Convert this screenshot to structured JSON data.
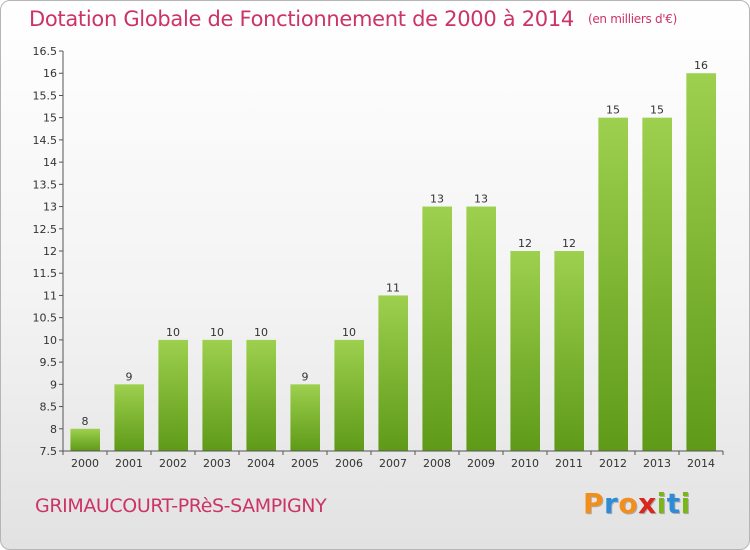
{
  "chart_data": {
    "type": "bar",
    "title": "Dotation Globale de Fonctionnement de 2000 à 2014",
    "unit": "(en milliers d'€)",
    "categories": [
      "2000",
      "2001",
      "2002",
      "2003",
      "2004",
      "2005",
      "2006",
      "2007",
      "2008",
      "2009",
      "2010",
      "2011",
      "2012",
      "2013",
      "2014"
    ],
    "values": [
      8,
      9,
      10,
      10,
      10,
      9,
      10,
      11,
      13,
      13,
      12,
      12,
      15,
      15,
      16
    ],
    "data_labels": [
      "8",
      "9",
      "10",
      "10",
      "10",
      "9",
      "10",
      "11",
      "13",
      "13",
      "12",
      "12",
      "15",
      "15",
      "16"
    ],
    "ylim": [
      7.5,
      16.5
    ],
    "yticks": [
      "7.5",
      "8",
      "8.5",
      "9",
      "9.5",
      "10",
      "10.5",
      "11",
      "11.5",
      "12",
      "12.5",
      "13",
      "13.5",
      "14",
      "14.5",
      "15",
      "15.5",
      "16",
      "16.5"
    ],
    "grid": false,
    "bar_color_top": "#9dd04e",
    "bar_color_bottom": "#5e9a18"
  },
  "commune": "GRIMAUCOURT-PRèS-SAMPIGNY",
  "logo": {
    "letters": [
      "P",
      "r",
      "o",
      "x",
      "i",
      "t",
      "i"
    ],
    "colors": [
      "#f28e1c",
      "#2e8bd6",
      "#f28e1c",
      "#d6281c",
      "#7ab51d",
      "#2e8bd6",
      "#7ab51d"
    ]
  },
  "colors": {
    "title": "#cc3366",
    "axis": "#555555"
  }
}
